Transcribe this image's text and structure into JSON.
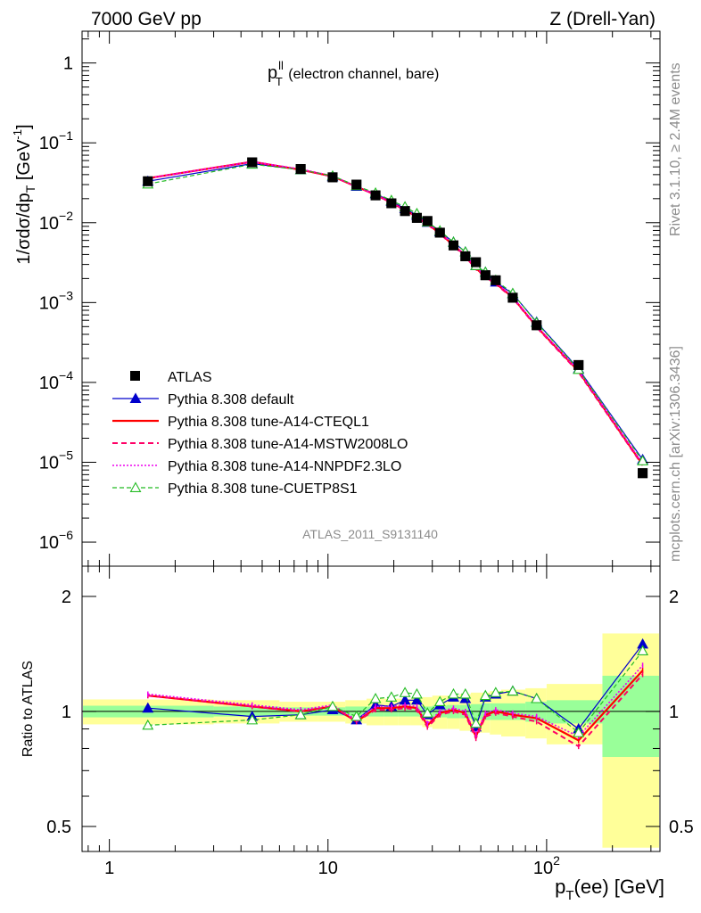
{
  "header": {
    "left": "7000 GeV pp",
    "right": "Z (Drell-Yan)"
  },
  "side_text": {
    "top": "Rivet 3.1.10, ≥ 2.4M events",
    "bottom": "mcplots.cern.ch [arXiv:1306.3436]"
  },
  "plot_title": {
    "main": "p",
    "sup": "ll",
    "sub": "T",
    "rest": " (electron channel, bare)"
  },
  "analysis_id": "ATLAS_2011_S9131140",
  "colors": {
    "data": "#000000",
    "default": "#0000cc",
    "cteql1": "#ff0000",
    "mstw": "#ff0066",
    "nnpdf": "#ee00ee",
    "cuetp8s1": "#22bb22",
    "band_stat": "#99ff99",
    "band_syst": "#ffff99"
  },
  "chart_data": [
    {
      "type": "scatter",
      "xscale": "log",
      "yscale": "log",
      "xlim": [
        0.75,
        330
      ],
      "ylim": [
        5e-07,
        2.5
      ],
      "ylabel": {
        "text": "1/σdσ/dp",
        "sub": "T",
        "unit": " [GeV",
        "unit_sup": "-1",
        "unit_end": "]"
      },
      "y_ticks": [
        {
          "value": 1,
          "base": "1",
          "exp": ""
        },
        {
          "value": 0.1,
          "base": "10",
          "exp": "−1"
        },
        {
          "value": 0.01,
          "base": "10",
          "exp": "−2"
        },
        {
          "value": 0.001,
          "base": "10",
          "exp": "−3"
        },
        {
          "value": 0.0001,
          "base": "10",
          "exp": "−4"
        },
        {
          "value": 1e-05,
          "base": "10",
          "exp": "−5"
        },
        {
          "value": 1e-06,
          "base": "10",
          "exp": "−6"
        }
      ],
      "legend_position": "bottom-left",
      "x": [
        1.5,
        4.5,
        7.5,
        10.5,
        13.5,
        16.5,
        19.5,
        22.5,
        25.5,
        28.5,
        32.5,
        37.5,
        42.5,
        47.5,
        52.5,
        58.5,
        70,
        90,
        140,
        275
      ],
      "series": [
        {
          "name": "ATLAS",
          "key": "data",
          "style": "data",
          "values": [
            0.033,
            0.057,
            0.047,
            0.037,
            0.03,
            0.022,
            0.0175,
            0.014,
            0.0115,
            0.0105,
            0.0075,
            0.0052,
            0.0038,
            0.0032,
            0.0022,
            0.0019,
            0.00115,
            0.00052,
            0.000165,
            7.3e-06
          ]
        },
        {
          "name": "Pythia 8.308 default",
          "key": "default",
          "style": "solid",
          "marker": "triangle-filled",
          "values": [
            0.033,
            0.055,
            0.046,
            0.0375,
            0.0285,
            0.023,
            0.0185,
            0.015,
            0.0124,
            0.0101,
            0.0077,
            0.0057,
            0.0043,
            0.0029,
            0.0024,
            0.0018,
            0.00129,
            0.00057,
            0.000148,
            1.08e-05
          ]
        },
        {
          "name": "Pythia 8.308 tune-A14-CTEQL1",
          "key": "cteql1",
          "style": "thick",
          "values": [
            0.036,
            0.058,
            0.046,
            0.038,
            0.0282,
            0.0224,
            0.0178,
            0.0144,
            0.0118,
            0.0096,
            0.0074,
            0.0052,
            0.0039,
            0.0027,
            0.0021,
            0.00175,
            0.00116,
            0.0005,
            0.000138,
            9.3e-06
          ]
        },
        {
          "name": "Pythia 8.308 tune-A14-MSTW2008LO",
          "key": "mstw",
          "style": "dashed",
          "values": [
            0.036,
            0.058,
            0.046,
            0.038,
            0.0282,
            0.0223,
            0.0178,
            0.0143,
            0.0117,
            0.0095,
            0.0073,
            0.0051,
            0.0038,
            0.0026,
            0.0021,
            0.0017,
            0.00114,
            0.00049,
            0.000134,
            9.1e-06
          ]
        },
        {
          "name": "Pythia 8.308 tune-A14-NNPDF2.3LO",
          "key": "nnpdf",
          "style": "dotted",
          "values": [
            0.036,
            0.058,
            0.047,
            0.0385,
            0.0284,
            0.0225,
            0.0179,
            0.0145,
            0.0119,
            0.0097,
            0.0075,
            0.0053,
            0.0039,
            0.0028,
            0.0021,
            0.0018,
            0.00117,
            0.00051,
            0.00014,
            9.6e-06
          ]
        },
        {
          "name": "Pythia 8.308 tune-CUETP8S1",
          "key": "cuetp8s1",
          "style": "dashed-thin",
          "marker": "triangle-open",
          "values": [
            0.0305,
            0.054,
            0.046,
            0.0385,
            0.029,
            0.0235,
            0.019,
            0.0158,
            0.013,
            0.0102,
            0.0079,
            0.0057,
            0.0043,
            0.0029,
            0.0024,
            0.0019,
            0.0013,
            0.00056,
            0.000145,
            1.04e-05
          ]
        }
      ]
    },
    {
      "type": "line",
      "xscale": "log",
      "yscale": "log",
      "xlim": [
        0.75,
        330
      ],
      "ylim": [
        0.43,
        2.4
      ],
      "ylabel": "Ratio to ATLAS",
      "y_ticks": [
        {
          "value": 2,
          "label": "2"
        },
        {
          "value": 1,
          "label": "1"
        },
        {
          "value": 0.5,
          "label": "0.5"
        }
      ],
      "x_ticks": [
        {
          "value": 1,
          "base": "1",
          "exp": ""
        },
        {
          "value": 10,
          "base": "10",
          "exp": ""
        },
        {
          "value": 100,
          "base": "10",
          "exp": "2"
        }
      ],
      "xlabel": {
        "text": "p",
        "sub": "T",
        "rest": "(ee) [GeV]"
      },
      "bin_edges": [
        0,
        3,
        6,
        9,
        12,
        15,
        18,
        21,
        24,
        27,
        30,
        35,
        40,
        45,
        50,
        55,
        62,
        80,
        100,
        180,
        350
      ],
      "band_stat": [
        0.035,
        0.03,
        0.025,
        0.025,
        0.03,
        0.03,
        0.03,
        0.03,
        0.03,
        0.03,
        0.035,
        0.04,
        0.04,
        0.045,
        0.05,
        0.05,
        0.05,
        0.06,
        0.07,
        0.24
      ],
      "band_syst": [
        0.075,
        0.07,
        0.06,
        0.06,
        0.07,
        0.08,
        0.08,
        0.08,
        0.08,
        0.09,
        0.1,
        0.1,
        0.11,
        0.12,
        0.12,
        0.13,
        0.14,
        0.15,
        0.18,
        0.6
      ],
      "x": [
        1.5,
        4.5,
        7.5,
        10.5,
        13.5,
        16.5,
        19.5,
        22.5,
        25.5,
        28.5,
        32.5,
        37.5,
        42.5,
        47.5,
        52.5,
        58.5,
        70,
        90,
        140,
        275
      ],
      "series": [
        {
          "name": "Pythia 8.308 default",
          "key": "default",
          "style": "solid",
          "marker": "triangle-filled",
          "values": [
            1.02,
            0.97,
            0.98,
            1.01,
            0.95,
            1.04,
            1.03,
            1.07,
            1.07,
            0.98,
            1.04,
            1.09,
            1.08,
            0.91,
            1.09,
            1.11,
            1.13,
            1.08,
            0.9,
            1.5
          ]
        },
        {
          "name": "Pythia 8.308 tune-A14-CTEQL1",
          "key": "cteql1",
          "style": "thick",
          "values": [
            1.1,
            1.03,
            1.0,
            1.03,
            0.94,
            1.02,
            1.02,
            1.03,
            1.02,
            0.92,
            0.99,
            1.01,
            0.99,
            0.86,
            0.98,
            1.0,
            0.98,
            0.96,
            0.84,
            1.28
          ]
        },
        {
          "name": "Pythia 8.308 tune-A14-MSTW2008LO",
          "key": "mstw",
          "style": "dashed",
          "values": [
            1.1,
            1.03,
            1.0,
            1.03,
            0.94,
            1.01,
            1.01,
            1.02,
            1.01,
            0.91,
            0.98,
            1.0,
            0.98,
            0.85,
            0.97,
            0.99,
            0.97,
            0.94,
            0.81,
            1.25
          ]
        },
        {
          "name": "Pythia 8.308 tune-A14-NNPDF2.3LO",
          "key": "nnpdf",
          "style": "dotted",
          "values": [
            1.11,
            1.04,
            1.01,
            1.04,
            0.95,
            1.03,
            1.03,
            1.04,
            1.03,
            0.93,
            1.0,
            1.02,
            1.0,
            0.87,
            0.99,
            1.01,
            0.99,
            0.97,
            0.86,
            1.32
          ]
        },
        {
          "name": "Pythia 8.308 tune-CUETP8S1",
          "key": "cuetp8s1",
          "style": "dashed-thin",
          "marker": "triangle-open",
          "values": [
            0.92,
            0.95,
            0.98,
            1.03,
            0.97,
            1.08,
            1.09,
            1.12,
            1.11,
            0.99,
            1.06,
            1.11,
            1.11,
            0.93,
            1.1,
            1.12,
            1.13,
            1.08,
            0.88,
            1.44
          ]
        }
      ]
    }
  ]
}
